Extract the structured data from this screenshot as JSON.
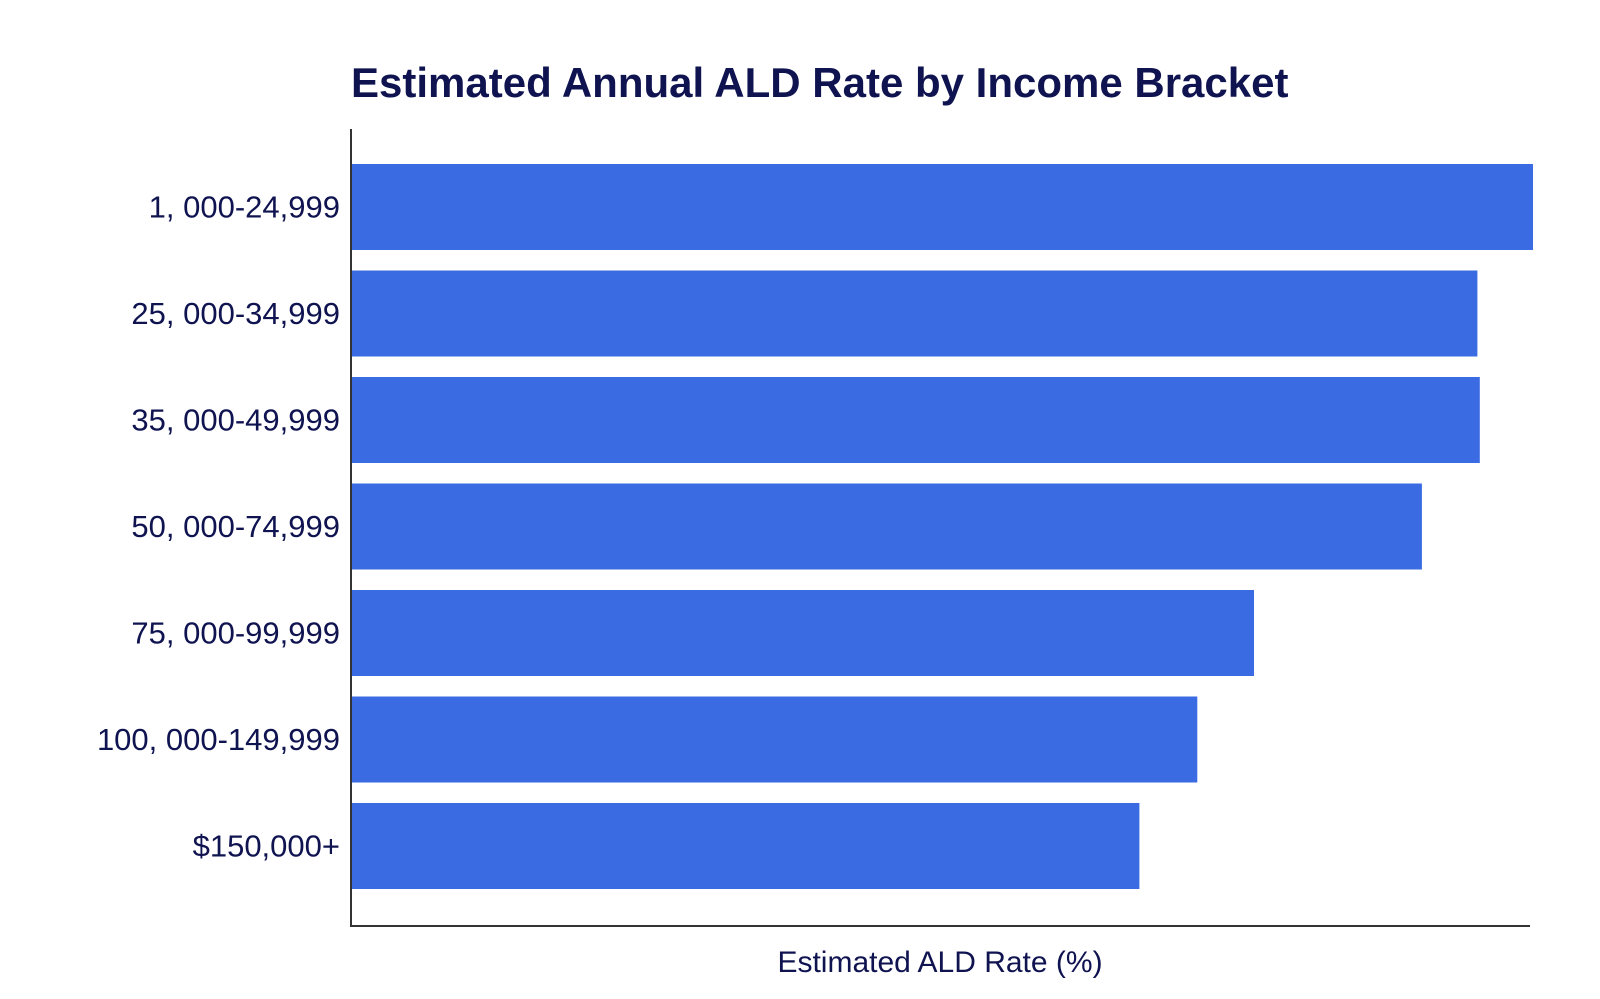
{
  "chart_data": {
    "type": "bar",
    "orientation": "horizontal",
    "title": "Estimated Annual ALD Rate by Income Bracket",
    "xlabel": "Estimated ALD Rate (%)",
    "ylabel": "",
    "categories": [
      "1, 000-24,999",
      "25, 000-34,999",
      "35, 000-49,999",
      "50, 000-74,999",
      "75, 000-99,999",
      "100, 000-149,999",
      "$150,000+"
    ],
    "values": [
      100,
      95.3,
      95.5,
      90.6,
      76.4,
      71.6,
      66.7
    ],
    "xlim": [
      0,
      100
    ],
    "grid": false,
    "legend": "none",
    "bar_color": "#3a6be3"
  }
}
